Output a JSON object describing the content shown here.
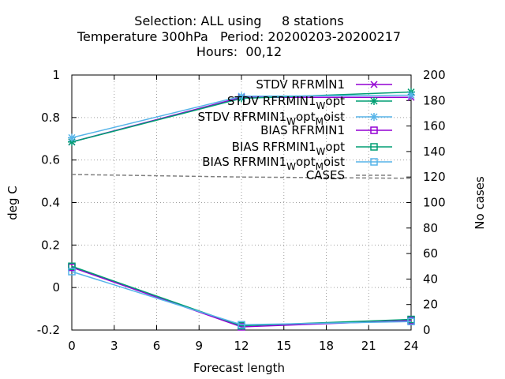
{
  "chart_data": {
    "type": "line",
    "title_lines": [
      "Selection: ALL using     8 stations",
      "Temperature 300hPa   Period: 20200203-20200217",
      "Hours:  00,12"
    ],
    "xlabel": "Forecast length",
    "ylabel": "deg C",
    "y2label": "No cases",
    "xlim": [
      0,
      24
    ],
    "ylim": [
      -0.2,
      1.0
    ],
    "y2lim": [
      0,
      200
    ],
    "xticks": [
      0,
      3,
      6,
      9,
      12,
      15,
      18,
      21,
      24
    ],
    "yticks": [
      -0.2,
      0,
      0.2,
      0.4,
      0.6,
      0.8,
      1
    ],
    "ytick_labels": [
      "-0.2",
      "0",
      "0.2",
      "0.4",
      "0.6",
      "0.8",
      "1"
    ],
    "y2ticks": [
      0,
      20,
      40,
      60,
      80,
      100,
      120,
      140,
      160,
      180,
      200
    ],
    "grid": true,
    "legend_position": "top-right",
    "x": [
      0,
      12,
      24
    ],
    "series": [
      {
        "name": "STDV RFRMIN1",
        "label_main": "STDV RFRMIN1",
        "color": "#9400d3",
        "marker": "x",
        "axis": "y",
        "values": [
          0.685,
          0.895,
          0.895
        ]
      },
      {
        "name": "STDV RFRMIN1_Wopt",
        "label_main": "STDV RFRMIN1",
        "label_sub": [
          [
            "W",
            "opt"
          ]
        ],
        "color": "#009e73",
        "marker": "star",
        "axis": "y",
        "values": [
          0.685,
          0.89,
          0.92
        ]
      },
      {
        "name": "STDV RFRMIN1_Wopt_Moist",
        "label_main": "STDV RFRMIN1",
        "label_sub": [
          [
            "W",
            "opt"
          ],
          [
            "M",
            "oist"
          ]
        ],
        "color": "#56b4e9",
        "marker": "star",
        "axis": "y",
        "values": [
          0.705,
          0.9,
          0.905
        ]
      },
      {
        "name": "BIAS RFRMIN1",
        "label_main": "BIAS RFRMIN1",
        "color": "#9400d3",
        "marker": "square",
        "axis": "y",
        "values": [
          0.095,
          -0.185,
          -0.155
        ]
      },
      {
        "name": "BIAS RFRMIN1_Wopt",
        "label_main": "BIAS RFRMIN1",
        "label_sub": [
          [
            "W",
            "opt"
          ]
        ],
        "color": "#009e73",
        "marker": "square",
        "axis": "y",
        "values": [
          0.1,
          -0.18,
          -0.15
        ]
      },
      {
        "name": "BIAS RFRMIN1_Wopt_Moist",
        "label_main": "BIAS RFRMIN1",
        "label_sub": [
          [
            "W",
            "opt"
          ],
          [
            "M",
            "oist"
          ]
        ],
        "color": "#56b4e9",
        "marker": "square",
        "axis": "y",
        "values": [
          0.075,
          -0.175,
          -0.16
        ]
      },
      {
        "name": "CASES",
        "label_main": "CASES",
        "color": "#808080",
        "dashed": true,
        "marker": "none",
        "axis": "y2",
        "values": [
          122,
          120,
          119
        ]
      }
    ]
  }
}
